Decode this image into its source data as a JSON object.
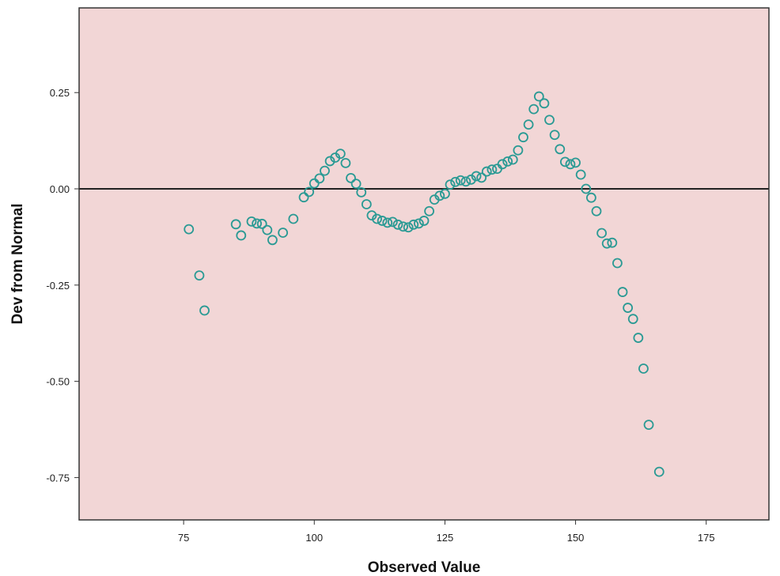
{
  "chart_data": {
    "type": "scatter",
    "title": "",
    "xlabel": "Observed Value",
    "ylabel": "Dev from Normal",
    "xlim": [
      55,
      187
    ],
    "ylim": [
      -0.86,
      0.47
    ],
    "xticks": [
      75,
      100,
      125,
      150,
      175
    ],
    "xtick_labels": [
      "75",
      "100",
      "125",
      "150",
      "175"
    ],
    "yticks": [
      0.25,
      0.0,
      -0.25,
      -0.5,
      -0.75
    ],
    "ytick_labels": [
      "0.25",
      "0.00",
      "-0.25",
      "-0.50",
      "-0.75"
    ],
    "reference_line_y": 0.0,
    "grid": false,
    "legend": "none",
    "colors": {
      "plot_background": "#f2d6d6",
      "marker": "#2a9a94",
      "reference_line": "#222222",
      "frame": "#333333"
    },
    "points": [
      [
        76,
        -0.105
      ],
      [
        78,
        -0.225
      ],
      [
        79,
        -0.316
      ],
      [
        85,
        -0.092
      ],
      [
        86,
        -0.121
      ],
      [
        88,
        -0.085
      ],
      [
        89,
        -0.09
      ],
      [
        90,
        -0.091
      ],
      [
        91,
        -0.107
      ],
      [
        92,
        -0.133
      ],
      [
        94,
        -0.114
      ],
      [
        96,
        -0.078
      ],
      [
        98,
        -0.022
      ],
      [
        99,
        -0.008
      ],
      [
        100,
        0.014
      ],
      [
        101,
        0.027
      ],
      [
        102,
        0.047
      ],
      [
        103,
        0.072
      ],
      [
        104,
        0.081
      ],
      [
        105,
        0.091
      ],
      [
        106,
        0.067
      ],
      [
        107,
        0.028
      ],
      [
        108,
        0.013
      ],
      [
        109,
        -0.009
      ],
      [
        110,
        -0.04
      ],
      [
        111,
        -0.069
      ],
      [
        112,
        -0.078
      ],
      [
        113,
        -0.083
      ],
      [
        114,
        -0.088
      ],
      [
        115,
        -0.086
      ],
      [
        116,
        -0.093
      ],
      [
        117,
        -0.098
      ],
      [
        118,
        -0.1
      ],
      [
        119,
        -0.093
      ],
      [
        120,
        -0.09
      ],
      [
        121,
        -0.083
      ],
      [
        122,
        -0.058
      ],
      [
        123,
        -0.028
      ],
      [
        124,
        -0.018
      ],
      [
        125,
        -0.013
      ],
      [
        126,
        0.011
      ],
      [
        127,
        0.018
      ],
      [
        128,
        0.022
      ],
      [
        129,
        0.019
      ],
      [
        130,
        0.024
      ],
      [
        131,
        0.033
      ],
      [
        132,
        0.029
      ],
      [
        133,
        0.045
      ],
      [
        134,
        0.05
      ],
      [
        135,
        0.052
      ],
      [
        136,
        0.064
      ],
      [
        137,
        0.071
      ],
      [
        138,
        0.076
      ],
      [
        139,
        0.1
      ],
      [
        140,
        0.134
      ],
      [
        141,
        0.167
      ],
      [
        142,
        0.207
      ],
      [
        143,
        0.24
      ],
      [
        144,
        0.222
      ],
      [
        145,
        0.179
      ],
      [
        146,
        0.14
      ],
      [
        147,
        0.103
      ],
      [
        148,
        0.07
      ],
      [
        149,
        0.064
      ],
      [
        150,
        0.068
      ],
      [
        151,
        0.037
      ],
      [
        152,
        0.0
      ],
      [
        153,
        -0.023
      ],
      [
        154,
        -0.058
      ],
      [
        155,
        -0.115
      ],
      [
        156,
        -0.142
      ],
      [
        157,
        -0.14
      ],
      [
        158,
        -0.193
      ],
      [
        159,
        -0.268
      ],
      [
        160,
        -0.309
      ],
      [
        161,
        -0.338
      ],
      [
        162,
        -0.387
      ],
      [
        163,
        -0.467
      ],
      [
        164,
        -0.613
      ],
      [
        166,
        -0.735
      ]
    ]
  }
}
